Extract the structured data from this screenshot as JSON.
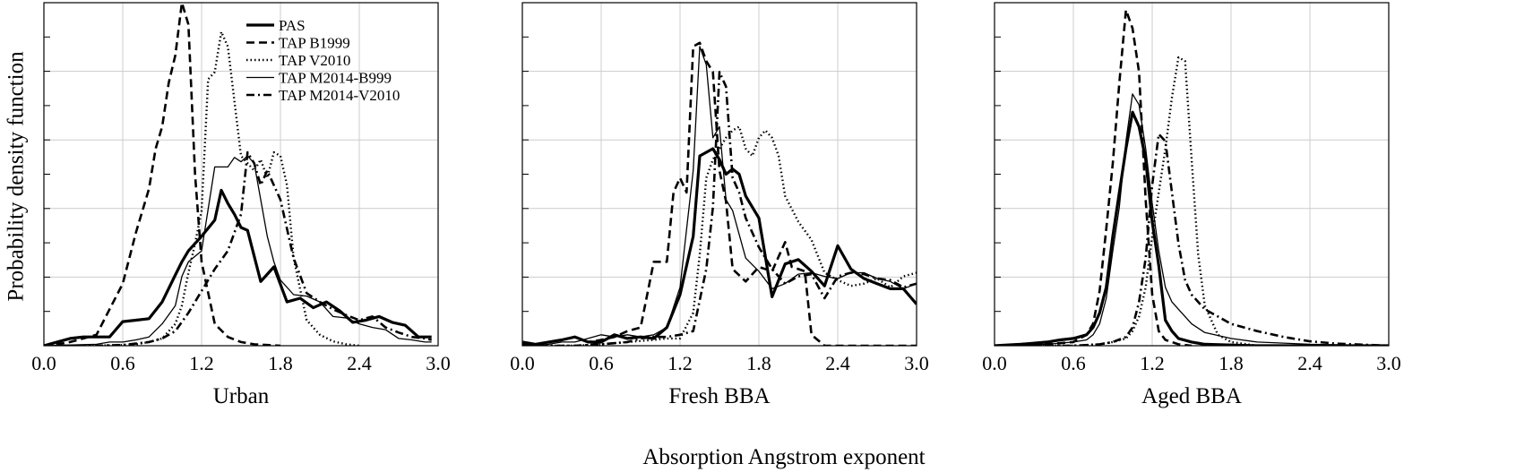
{
  "figure": {
    "ylabel": "Probability density function",
    "xlabel": "Absorption Angstrom exponent"
  },
  "legend": [
    {
      "name": "PAS",
      "style": "thick-solid"
    },
    {
      "name": "TAP B1999",
      "style": "dashed"
    },
    {
      "name": "TAP V2010",
      "style": "dotted"
    },
    {
      "name": "TAP M2014-B999",
      "style": "thin-solid"
    },
    {
      "name": "TAP M2014-V2010",
      "style": "dash-dot"
    }
  ],
  "chart_data": [
    {
      "type": "line",
      "title": "Urban",
      "xlim": [
        0,
        3
      ],
      "ylim": [
        0,
        4.7
      ],
      "x_ticks": [
        "0.0",
        "0.6",
        "1.2",
        "1.8",
        "2.4",
        "3.0"
      ],
      "grid": true,
      "series": [
        {
          "name": "PAS",
          "x": [
            0.0,
            0.1,
            0.2,
            0.3,
            0.4,
            0.5,
            0.6,
            0.7,
            0.8,
            0.9,
            1.0,
            1.05,
            1.1,
            1.2,
            1.3,
            1.35,
            1.4,
            1.45,
            1.5,
            1.55,
            1.65,
            1.75,
            1.85,
            1.95,
            2.05,
            2.15,
            2.25,
            2.35,
            2.45,
            2.55,
            2.65,
            2.75,
            2.85,
            2.95
          ],
          "y": [
            0.0,
            0.05,
            0.1,
            0.12,
            0.12,
            0.12,
            0.33,
            0.35,
            0.37,
            0.6,
            0.97,
            1.15,
            1.3,
            1.5,
            1.72,
            2.13,
            1.95,
            1.8,
            1.62,
            1.58,
            0.88,
            1.08,
            0.6,
            0.65,
            0.52,
            0.6,
            0.48,
            0.32,
            0.35,
            0.4,
            0.32,
            0.28,
            0.12,
            0.12
          ]
        },
        {
          "name": "TAP B1999",
          "x": [
            0.0,
            0.1,
            0.2,
            0.3,
            0.4,
            0.5,
            0.6,
            0.7,
            0.8,
            0.85,
            0.9,
            0.95,
            1.0,
            1.05,
            1.1,
            1.15,
            1.2,
            1.3,
            1.4,
            1.5,
            1.6,
            1.7,
            1.8
          ],
          "y": [
            0.0,
            0.02,
            0.05,
            0.1,
            0.15,
            0.5,
            0.85,
            1.55,
            2.15,
            2.7,
            3.0,
            3.6,
            3.98,
            4.7,
            4.4,
            2.35,
            1.15,
            0.3,
            0.12,
            0.05,
            0.02,
            0.01,
            0.0
          ]
        },
        {
          "name": "TAP V2010",
          "x": [
            0.0,
            0.4,
            0.6,
            0.7,
            0.8,
            0.9,
            1.0,
            1.05,
            1.1,
            1.15,
            1.2,
            1.25,
            1.3,
            1.35,
            1.4,
            1.5,
            1.6,
            1.65,
            1.7,
            1.75,
            1.8,
            1.85,
            1.9,
            2.0,
            2.1,
            2.2,
            2.3,
            2.4
          ],
          "y": [
            0.0,
            0.0,
            0.01,
            0.02,
            0.05,
            0.1,
            0.3,
            0.55,
            1.0,
            1.4,
            1.85,
            3.65,
            3.75,
            4.3,
            4.1,
            2.6,
            2.4,
            2.55,
            2.3,
            2.65,
            2.6,
            2.2,
            1.2,
            0.35,
            0.15,
            0.06,
            0.02,
            0.0
          ]
        },
        {
          "name": "TAP M2014-B999",
          "x": [
            0.0,
            0.4,
            0.5,
            0.6,
            0.7,
            0.8,
            0.9,
            1.0,
            1.05,
            1.1,
            1.2,
            1.3,
            1.4,
            1.45,
            1.5,
            1.55,
            1.6,
            1.7,
            1.75,
            1.8,
            1.9,
            2.0,
            2.1,
            2.2,
            2.3,
            2.4,
            2.5,
            2.6,
            2.7,
            2.8,
            2.9,
            2.95
          ],
          "y": [
            0.0,
            0.02,
            0.05,
            0.05,
            0.08,
            0.12,
            0.3,
            0.55,
            0.95,
            1.15,
            1.3,
            2.45,
            2.45,
            2.58,
            2.52,
            2.6,
            2.5,
            1.5,
            1.15,
            0.9,
            0.7,
            0.68,
            0.6,
            0.4,
            0.38,
            0.3,
            0.25,
            0.22,
            0.1,
            0.08,
            0.05,
            0.05
          ]
        },
        {
          "name": "TAP M2014-V2010",
          "x": [
            0.0,
            0.4,
            0.6,
            0.8,
            0.9,
            1.0,
            1.1,
            1.2,
            1.3,
            1.4,
            1.5,
            1.55,
            1.6,
            1.65,
            1.7,
            1.8,
            1.9,
            2.0,
            2.1,
            2.2,
            2.3,
            2.4,
            2.5,
            2.6,
            2.7,
            2.8,
            2.9,
            2.95
          ],
          "y": [
            0.0,
            0.0,
            0.01,
            0.05,
            0.1,
            0.2,
            0.45,
            0.75,
            1.05,
            1.3,
            1.8,
            2.65,
            2.5,
            2.2,
            2.4,
            2.0,
            1.2,
            0.72,
            0.6,
            0.5,
            0.42,
            0.35,
            0.4,
            0.25,
            0.18,
            0.12,
            0.1,
            0.08
          ]
        }
      ]
    },
    {
      "type": "line",
      "title": "Fresh BBA",
      "xlim": [
        0,
        3
      ],
      "ylim": [
        0,
        4.7
      ],
      "x_ticks": [
        "0.0",
        "0.6",
        "1.2",
        "1.8",
        "2.4",
        "3.0"
      ],
      "grid": true,
      "series": [
        {
          "name": "PAS",
          "x": [
            0.0,
            0.1,
            0.2,
            0.3,
            0.4,
            0.5,
            0.6,
            0.7,
            0.8,
            0.9,
            1.0,
            1.1,
            1.2,
            1.3,
            1.35,
            1.45,
            1.5,
            1.55,
            1.6,
            1.65,
            1.7,
            1.8,
            1.9,
            2.0,
            2.1,
            2.2,
            2.3,
            2.4,
            2.5,
            2.6,
            2.7,
            2.8,
            2.9,
            3.0
          ],
          "y": [
            0.05,
            0.02,
            0.05,
            0.08,
            0.12,
            0.05,
            0.05,
            0.15,
            0.1,
            0.12,
            0.1,
            0.25,
            0.7,
            1.5,
            2.6,
            2.7,
            2.55,
            2.35,
            2.42,
            2.35,
            2.05,
            1.75,
            0.67,
            1.12,
            1.18,
            1.02,
            0.82,
            1.37,
            1.05,
            0.92,
            0.85,
            0.78,
            0.78,
            0.57
          ]
        },
        {
          "name": "TAP B1999",
          "x": [
            0.0,
            0.1,
            0.2,
            0.3,
            0.4,
            0.5,
            0.6,
            0.7,
            0.8,
            0.9,
            1.0,
            1.1,
            1.15,
            1.2,
            1.25,
            1.3,
            1.35,
            1.4,
            1.45,
            1.5,
            1.55,
            1.6,
            1.7,
            1.8,
            1.9,
            2.0,
            2.05,
            2.1,
            2.15,
            2.2,
            2.3,
            2.4,
            2.5,
            2.6,
            2.7,
            2.8,
            2.9,
            3.0
          ],
          "y": [
            0.02,
            0.02,
            0.05,
            0.08,
            0.12,
            0.05,
            0.08,
            0.12,
            0.2,
            0.25,
            1.15,
            1.15,
            2.1,
            2.3,
            2.1,
            4.1,
            4.15,
            3.9,
            3.75,
            2.4,
            1.98,
            1.05,
            0.88,
            1.08,
            1.02,
            1.42,
            1.08,
            1.05,
            1.02,
            0.15,
            0.0,
            0.0,
            0.0,
            0.0,
            0.0,
            0.0,
            0.0,
            0.0
          ]
        },
        {
          "name": "TAP V2010",
          "x": [
            0.0,
            0.4,
            0.6,
            0.8,
            1.0,
            1.1,
            1.2,
            1.3,
            1.35,
            1.4,
            1.45,
            1.5,
            1.55,
            1.6,
            1.65,
            1.7,
            1.75,
            1.8,
            1.85,
            1.9,
            1.95,
            2.0,
            2.1,
            2.2,
            2.3,
            2.4,
            2.5,
            2.6,
            2.7,
            2.8,
            2.9,
            3.0
          ],
          "y": [
            0.0,
            0.0,
            0.02,
            0.05,
            0.08,
            0.1,
            0.1,
            0.45,
            1.25,
            2.3,
            2.55,
            2.7,
            2.85,
            2.95,
            3.0,
            2.7,
            2.6,
            2.85,
            2.95,
            2.85,
            2.6,
            2.05,
            1.7,
            1.45,
            1.0,
            0.9,
            0.82,
            0.85,
            0.92,
            0.8,
            0.95,
            1.0
          ]
        },
        {
          "name": "TAP M2014-B999",
          "x": [
            0.0,
            0.1,
            0.2,
            0.3,
            0.4,
            0.5,
            0.6,
            0.7,
            0.8,
            0.9,
            1.0,
            1.1,
            1.2,
            1.3,
            1.35,
            1.4,
            1.45,
            1.5,
            1.55,
            1.6,
            1.7,
            1.8,
            1.9,
            2.0,
            2.1,
            2.2,
            2.3,
            2.4,
            2.5,
            2.6,
            2.7,
            2.8,
            2.9,
            3.0
          ],
          "y": [
            0.02,
            0.0,
            0.02,
            0.05,
            0.05,
            0.1,
            0.15,
            0.12,
            0.15,
            0.12,
            0.15,
            0.25,
            0.8,
            2.4,
            4.1,
            3.85,
            2.85,
            3.0,
            2.0,
            1.85,
            1.2,
            1.02,
            0.78,
            0.85,
            0.98,
            1.0,
            0.95,
            0.92,
            1.0,
            1.0,
            0.92,
            0.88,
            0.78,
            0.85
          ]
        },
        {
          "name": "TAP M2014-V2010",
          "x": [
            0.0,
            0.4,
            0.6,
            0.8,
            0.9,
            1.0,
            1.1,
            1.2,
            1.3,
            1.4,
            1.45,
            1.5,
            1.55,
            1.6,
            1.65,
            1.7,
            1.8,
            1.9,
            2.0,
            2.1,
            2.2,
            2.3,
            2.4,
            2.5,
            2.6,
            2.7,
            2.8,
            2.9,
            3.0
          ],
          "y": [
            0.0,
            0.0,
            0.02,
            0.05,
            0.1,
            0.12,
            0.12,
            0.15,
            0.2,
            1.05,
            1.9,
            3.75,
            3.55,
            2.3,
            2.1,
            1.75,
            1.35,
            1.05,
            0.85,
            0.95,
            0.98,
            0.65,
            0.95,
            1.0,
            0.98,
            0.92,
            0.9,
            0.8,
            0.85
          ]
        }
      ]
    },
    {
      "type": "line",
      "title": "Aged BBA",
      "xlim": [
        0,
        3
      ],
      "ylim": [
        0,
        4.7
      ],
      "x_ticks": [
        "0.0",
        "0.6",
        "1.2",
        "1.8",
        "2.4",
        "3.0"
      ],
      "grid": true,
      "series": [
        {
          "name": "PAS",
          "x": [
            0.0,
            0.2,
            0.4,
            0.5,
            0.6,
            0.7,
            0.75,
            0.8,
            0.85,
            0.9,
            0.95,
            1.0,
            1.05,
            1.1,
            1.15,
            1.2,
            1.25,
            1.3,
            1.35,
            1.4,
            1.5,
            1.6,
            1.8,
            2.0,
            3.0
          ],
          "y": [
            0.0,
            0.02,
            0.05,
            0.08,
            0.1,
            0.15,
            0.25,
            0.45,
            0.8,
            1.5,
            2.1,
            2.7,
            3.2,
            3.0,
            2.55,
            1.7,
            1.1,
            0.35,
            0.2,
            0.1,
            0.05,
            0.02,
            0.01,
            0.0,
            0.0
          ]
        },
        {
          "name": "TAP B1999",
          "x": [
            0.0,
            0.4,
            0.6,
            0.7,
            0.75,
            0.8,
            0.85,
            0.9,
            0.95,
            1.0,
            1.05,
            1.1,
            1.15,
            1.2,
            1.25,
            1.3,
            1.4,
            1.5
          ],
          "y": [
            0.0,
            0.02,
            0.05,
            0.15,
            0.3,
            0.75,
            1.6,
            2.5,
            3.6,
            4.6,
            4.35,
            3.75,
            2.0,
            0.7,
            0.2,
            0.08,
            0.02,
            0.0
          ]
        },
        {
          "name": "TAP V2010",
          "x": [
            0.0,
            0.6,
            0.8,
            0.9,
            1.0,
            1.05,
            1.1,
            1.15,
            1.2,
            1.25,
            1.3,
            1.35,
            1.4,
            1.45,
            1.5,
            1.55,
            1.6,
            1.7,
            1.8,
            2.0
          ],
          "y": [
            0.0,
            0.0,
            0.02,
            0.05,
            0.1,
            0.2,
            0.4,
            0.8,
            1.5,
            2.1,
            2.7,
            3.4,
            3.95,
            3.9,
            2.55,
            1.25,
            0.55,
            0.15,
            0.05,
            0.0
          ]
        },
        {
          "name": "TAP M2014-B999",
          "x": [
            0.0,
            0.4,
            0.6,
            0.7,
            0.75,
            0.8,
            0.85,
            0.9,
            0.95,
            1.0,
            1.05,
            1.1,
            1.15,
            1.2,
            1.25,
            1.3,
            1.35,
            1.4,
            1.5,
            1.6,
            1.8,
            2.0,
            2.4,
            3.0
          ],
          "y": [
            0.0,
            0.02,
            0.05,
            0.08,
            0.15,
            0.3,
            0.65,
            1.3,
            1.9,
            2.8,
            3.45,
            3.3,
            2.7,
            1.95,
            1.3,
            0.8,
            0.6,
            0.5,
            0.3,
            0.18,
            0.1,
            0.05,
            0.02,
            0.0
          ]
        },
        {
          "name": "TAP M2014-V2010",
          "x": [
            0.0,
            0.6,
            0.8,
            0.9,
            1.0,
            1.05,
            1.1,
            1.15,
            1.2,
            1.25,
            1.3,
            1.35,
            1.4,
            1.45,
            1.5,
            1.6,
            1.7,
            1.8,
            2.0,
            2.2,
            2.4,
            2.6,
            3.0
          ],
          "y": [
            0.0,
            0.0,
            0.02,
            0.05,
            0.12,
            0.25,
            0.6,
            1.2,
            2.2,
            2.9,
            2.8,
            2.1,
            1.4,
            0.9,
            0.7,
            0.5,
            0.4,
            0.3,
            0.2,
            0.12,
            0.06,
            0.03,
            0.0
          ]
        }
      ]
    }
  ]
}
